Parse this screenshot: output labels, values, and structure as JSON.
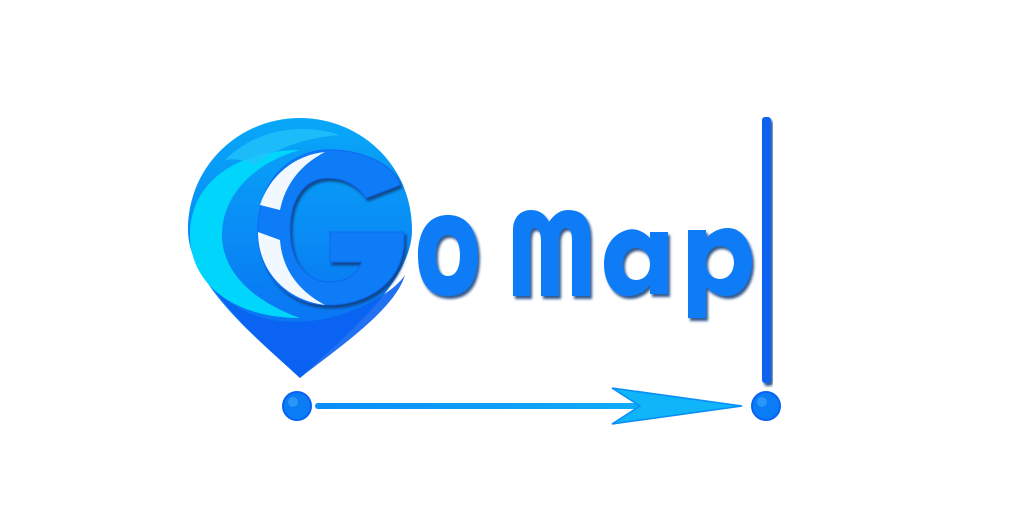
{
  "logo": {
    "wordmark": "GOMap",
    "letters": [
      "G",
      "O",
      "M",
      "a",
      "p"
    ],
    "colors": {
      "cyan": "#00D6FB",
      "sky": "#08A8F8",
      "blue": "#0A7CF6",
      "deep_blue": "#0A62F2",
      "white": "#FFFFFF",
      "text_shadow": "#0D3C7A"
    }
  }
}
